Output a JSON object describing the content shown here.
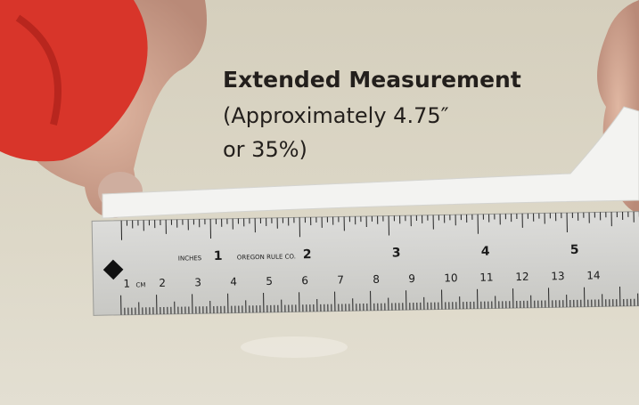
{
  "overlay": {
    "title": "Extended Measurement",
    "lines": [
      "(Approximately 4.75″",
      "or 35%)"
    ]
  },
  "ruler": {
    "inch_caption": "INCHES",
    "maker": "OREGON RULE CO.",
    "inch_labels": [
      "1",
      "2",
      "3",
      "4",
      "5"
    ],
    "cm_caption": "CM",
    "cm_labels": [
      "1",
      "2",
      "3",
      "4",
      "5",
      "6",
      "7",
      "8",
      "9",
      "10",
      "11",
      "12",
      "13",
      "14"
    ]
  }
}
